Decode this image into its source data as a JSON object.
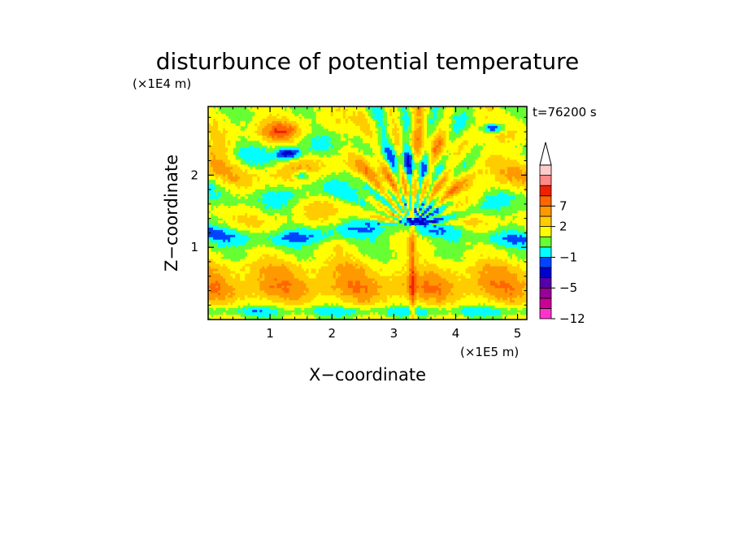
{
  "chart_data": {
    "type": "heatmap",
    "title": "disturbunce of potential temperature",
    "time_label": "t=76200 s",
    "xlabel": "X−coordinate",
    "ylabel": "Z−coordinate",
    "x_unit": "(×1E5 m)",
    "y_unit": "(×1E4 m)",
    "xlim": [
      0,
      5.15
    ],
    "ylim": [
      0,
      2.95
    ],
    "x_ticks": [
      "1",
      "2",
      "3",
      "4",
      "5"
    ],
    "x_tick_values": [
      1,
      2,
      3,
      4,
      5
    ],
    "y_ticks": [
      "1",
      "2"
    ],
    "y_tick_values": [
      1,
      2
    ],
    "colorbar": {
      "colors": [
        "#ff33cc",
        "#cc0099",
        "#990099",
        "#5500aa",
        "#0000cc",
        "#0044ff",
        "#00ffff",
        "#66ff33",
        "#ffff00",
        "#ffcc00",
        "#ff9900",
        "#ff6600",
        "#ee2200",
        "#ff8888",
        "#ffcccc"
      ],
      "tick_labels": [
        "−12",
        "−5",
        "−1",
        "2",
        "7"
      ],
      "tick_bands": [
        0,
        3,
        6,
        9,
        11
      ],
      "extend_top": true
    }
  }
}
